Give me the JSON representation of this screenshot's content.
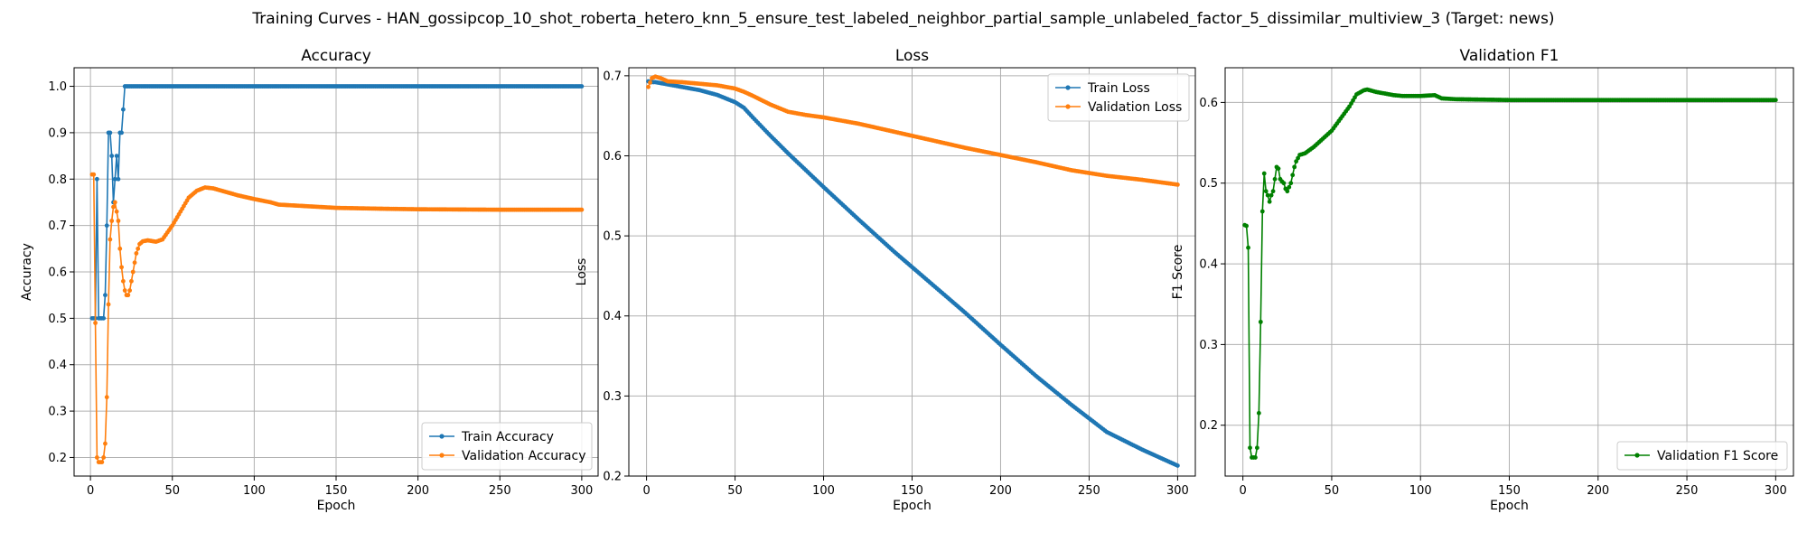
{
  "figure": {
    "suptitle": "Training Curves - HAN_gossipcop_10_shot_roberta_hetero_knn_5_ensure_test_labeled_neighbor_partial_sample_unlabeled_factor_5_dissimilar_multiview_3 (Target: news)"
  },
  "colors": {
    "blue": "#1f77b4",
    "orange": "#ff7f0e",
    "green": "#008000",
    "grid": "#b0b0b0"
  },
  "chart_data": [
    {
      "type": "line",
      "title": "Accuracy",
      "xlabel": "Epoch",
      "ylabel": "Accuracy",
      "xlim": [
        -10,
        310
      ],
      "ylim": [
        0.16,
        1.04
      ],
      "xticks": [
        0,
        50,
        100,
        150,
        200,
        250,
        300
      ],
      "yticks": [
        0.2,
        0.3,
        0.4,
        0.5,
        0.6,
        0.7,
        0.8,
        0.9,
        1.0
      ],
      "grid": true,
      "legend": "lower right",
      "series": [
        {
          "name": "Train Accuracy",
          "color": "#1f77b4",
          "points": [
            [
              1,
              0.5
            ],
            [
              2,
              0.5
            ],
            [
              3,
              0.5
            ],
            [
              4,
              0.8
            ],
            [
              5,
              0.5
            ],
            [
              6,
              0.5
            ],
            [
              7,
              0.5
            ],
            [
              8,
              0.5
            ],
            [
              9,
              0.55
            ],
            [
              10,
              0.7
            ],
            [
              11,
              0.9
            ],
            [
              12,
              0.9
            ],
            [
              13,
              0.85
            ],
            [
              14,
              0.75
            ],
            [
              15,
              0.8
            ],
            [
              16,
              0.85
            ],
            [
              17,
              0.8
            ],
            [
              18,
              0.9
            ],
            [
              19,
              0.9
            ],
            [
              20,
              0.95
            ],
            [
              21,
              1.0
            ],
            [
              300,
              1.0
            ]
          ]
        },
        {
          "name": "Validation Accuracy",
          "color": "#ff7f0e",
          "points": [
            [
              1,
              0.81
            ],
            [
              2,
              0.81
            ],
            [
              3,
              0.49
            ],
            [
              4,
              0.2
            ],
            [
              5,
              0.19
            ],
            [
              6,
              0.19
            ],
            [
              7,
              0.19
            ],
            [
              8,
              0.2
            ],
            [
              9,
              0.23
            ],
            [
              10,
              0.33
            ],
            [
              11,
              0.53
            ],
            [
              12,
              0.67
            ],
            [
              13,
              0.71
            ],
            [
              14,
              0.74
            ],
            [
              15,
              0.75
            ],
            [
              16,
              0.73
            ],
            [
              17,
              0.71
            ],
            [
              18,
              0.65
            ],
            [
              19,
              0.61
            ],
            [
              20,
              0.58
            ],
            [
              21,
              0.56
            ],
            [
              22,
              0.55
            ],
            [
              23,
              0.55
            ],
            [
              24,
              0.56
            ],
            [
              25,
              0.58
            ],
            [
              26,
              0.6
            ],
            [
              27,
              0.62
            ],
            [
              28,
              0.64
            ],
            [
              29,
              0.65
            ],
            [
              30,
              0.66
            ],
            [
              32,
              0.666
            ],
            [
              35,
              0.668
            ],
            [
              40,
              0.665
            ],
            [
              44,
              0.67
            ],
            [
              50,
              0.7
            ],
            [
              55,
              0.73
            ],
            [
              60,
              0.76
            ],
            [
              65,
              0.775
            ],
            [
              70,
              0.782
            ],
            [
              75,
              0.78
            ],
            [
              80,
              0.775
            ],
            [
              90,
              0.765
            ],
            [
              100,
              0.757
            ],
            [
              110,
              0.75
            ],
            [
              115,
              0.745
            ],
            [
              130,
              0.742
            ],
            [
              150,
              0.738
            ],
            [
              180,
              0.736
            ],
            [
              200,
              0.735
            ],
            [
              250,
              0.734
            ],
            [
              300,
              0.734
            ]
          ]
        }
      ]
    },
    {
      "type": "line",
      "title": "Loss",
      "xlabel": "Epoch",
      "ylabel": "Loss",
      "xlim": [
        -10,
        310
      ],
      "ylim": [
        0.2,
        0.71
      ],
      "xticks": [
        0,
        50,
        100,
        150,
        200,
        250,
        300
      ],
      "yticks": [
        0.2,
        0.3,
        0.4,
        0.5,
        0.6,
        0.7
      ],
      "grid": true,
      "legend": "upper right",
      "series": [
        {
          "name": "Train Loss",
          "color": "#1f77b4",
          "points": [
            [
              1,
              0.693
            ],
            [
              3,
              0.692
            ],
            [
              5,
              0.692
            ],
            [
              10,
              0.69
            ],
            [
              20,
              0.686
            ],
            [
              30,
              0.682
            ],
            [
              40,
              0.676
            ],
            [
              50,
              0.667
            ],
            [
              55,
              0.66
            ],
            [
              60,
              0.648
            ],
            [
              70,
              0.625
            ],
            [
              80,
              0.603
            ],
            [
              90,
              0.582
            ],
            [
              100,
              0.561
            ],
            [
              120,
              0.52
            ],
            [
              140,
              0.48
            ],
            [
              160,
              0.442
            ],
            [
              180,
              0.404
            ],
            [
              200,
              0.364
            ],
            [
              220,
              0.325
            ],
            [
              240,
              0.289
            ],
            [
              260,
              0.255
            ],
            [
              280,
              0.233
            ],
            [
              300,
              0.213
            ]
          ]
        },
        {
          "name": "Validation Loss",
          "color": "#ff7f0e",
          "points": [
            [
              1,
              0.686
            ],
            [
              3,
              0.697
            ],
            [
              5,
              0.699
            ],
            [
              8,
              0.697
            ],
            [
              12,
              0.693
            ],
            [
              20,
              0.692
            ],
            [
              30,
              0.69
            ],
            [
              40,
              0.688
            ],
            [
              50,
              0.684
            ],
            [
              55,
              0.68
            ],
            [
              60,
              0.675
            ],
            [
              70,
              0.664
            ],
            [
              80,
              0.655
            ],
            [
              90,
              0.651
            ],
            [
              100,
              0.648
            ],
            [
              120,
              0.64
            ],
            [
              140,
              0.63
            ],
            [
              160,
              0.62
            ],
            [
              180,
              0.61
            ],
            [
              200,
              0.601
            ],
            [
              220,
              0.592
            ],
            [
              240,
              0.582
            ],
            [
              260,
              0.575
            ],
            [
              280,
              0.57
            ],
            [
              300,
              0.564
            ]
          ]
        }
      ]
    },
    {
      "type": "line",
      "title": "Validation F1",
      "xlabel": "Epoch",
      "ylabel": "F1 Score",
      "xlim": [
        -10,
        310
      ],
      "ylim": [
        0.137,
        0.643
      ],
      "xticks": [
        0,
        50,
        100,
        150,
        200,
        250,
        300
      ],
      "yticks": [
        0.2,
        0.3,
        0.4,
        0.5,
        0.6
      ],
      "grid": true,
      "legend": "lower right",
      "series": [
        {
          "name": "Validation F1 Score",
          "color": "#008000",
          "points": [
            [
              1,
              0.448
            ],
            [
              2,
              0.447
            ],
            [
              3,
              0.42
            ],
            [
              4,
              0.172
            ],
            [
              5,
              0.16
            ],
            [
              6,
              0.16
            ],
            [
              7,
              0.16
            ],
            [
              8,
              0.172
            ],
            [
              9,
              0.215
            ],
            [
              10,
              0.328
            ],
            [
              11,
              0.465
            ],
            [
              12,
              0.512
            ],
            [
              13,
              0.49
            ],
            [
              14,
              0.485
            ],
            [
              15,
              0.477
            ],
            [
              16,
              0.485
            ],
            [
              17,
              0.49
            ],
            [
              18,
              0.505
            ],
            [
              19,
              0.52
            ],
            [
              20,
              0.518
            ],
            [
              21,
              0.505
            ],
            [
              22,
              0.502
            ],
            [
              23,
              0.5
            ],
            [
              24,
              0.493
            ],
            [
              25,
              0.49
            ],
            [
              26,
              0.495
            ],
            [
              27,
              0.5
            ],
            [
              28,
              0.51
            ],
            [
              29,
              0.52
            ],
            [
              30,
              0.527
            ],
            [
              32,
              0.535
            ],
            [
              35,
              0.537
            ],
            [
              40,
              0.545
            ],
            [
              45,
              0.555
            ],
            [
              50,
              0.565
            ],
            [
              55,
              0.58
            ],
            [
              60,
              0.595
            ],
            [
              64,
              0.61
            ],
            [
              68,
              0.615
            ],
            [
              70,
              0.616
            ],
            [
              75,
              0.613
            ],
            [
              80,
              0.611
            ],
            [
              85,
              0.609
            ],
            [
              90,
              0.608
            ],
            [
              100,
              0.608
            ],
            [
              108,
              0.609
            ],
            [
              112,
              0.605
            ],
            [
              120,
              0.604
            ],
            [
              150,
              0.603
            ],
            [
              200,
              0.603
            ],
            [
              250,
              0.603
            ],
            [
              300,
              0.603
            ]
          ]
        }
      ]
    }
  ]
}
